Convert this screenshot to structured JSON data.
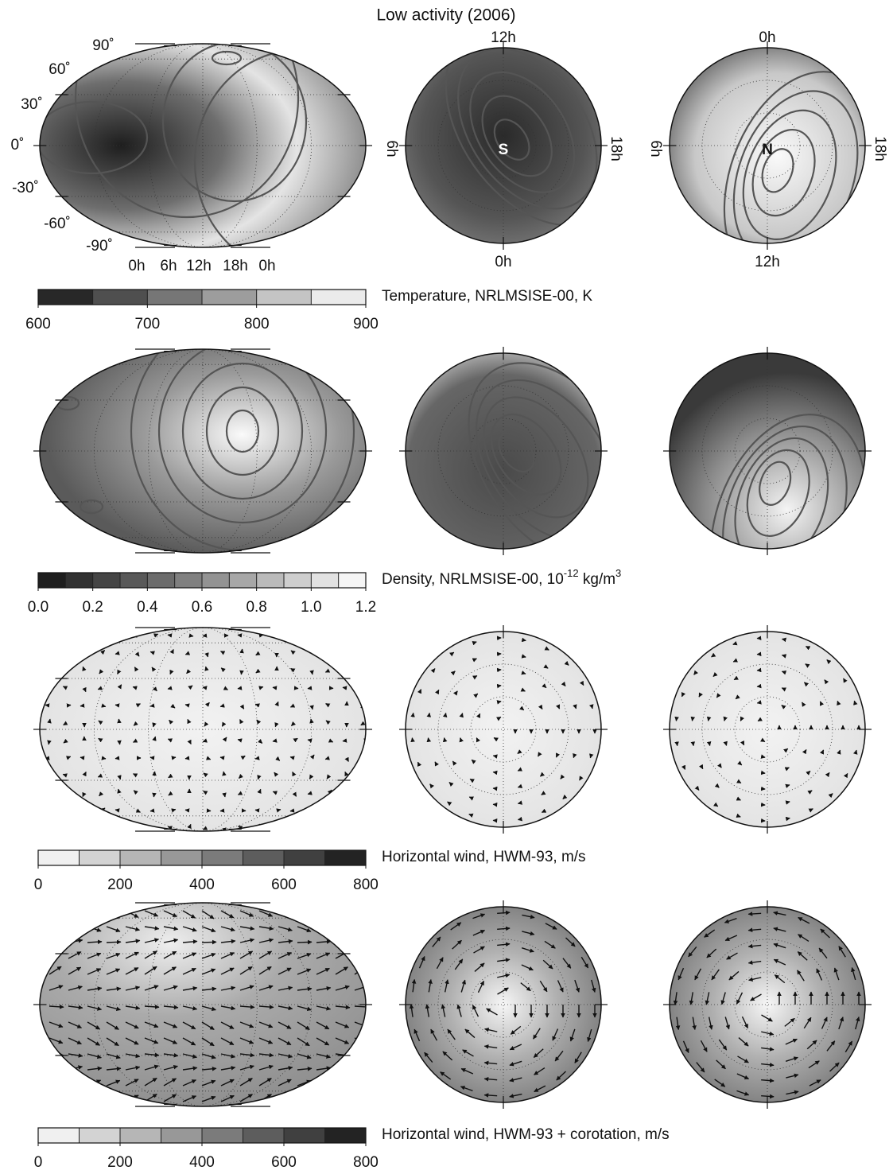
{
  "title": "Low activity (2006)",
  "map_labels": {
    "latitudes": [
      "90˚",
      "60˚",
      "30˚",
      "0˚",
      "-30˚",
      "-60˚",
      "-90˚"
    ],
    "local_times": [
      "0h",
      "6h",
      "12h",
      "18h",
      "0h"
    ],
    "south": {
      "pole": "S",
      "top": "12h",
      "left": "6h",
      "right": "18h",
      "bottom": "0h"
    },
    "north": {
      "pole": "N",
      "top": "0h",
      "left": "6h",
      "right": "18h",
      "bottom": "12h"
    }
  },
  "panels": [
    {
      "colorbar": {
        "label_parts": [
          "Temperature, NRLMSISE-00, K"
        ],
        "lim": [
          600,
          900
        ],
        "ticks": [
          600,
          700,
          800,
          900
        ],
        "colormap": "dark-to-light"
      }
    },
    {
      "colorbar": {
        "label_parts": [
          "Density, NRLMSISE-00, 10",
          "-12",
          " kg/m",
          "3"
        ],
        "lim": [
          0,
          1.2
        ],
        "ticks": [
          {
            "value": 0,
            "label": "0.0"
          },
          0.2,
          0.4,
          0.6,
          0.8,
          {
            "value": 1,
            "label": "1.0"
          },
          1.2
        ],
        "colormap": "dark-to-light"
      }
    },
    {
      "colorbar": {
        "label_parts": [
          "Horizontal wind, HWM-93, m/s"
        ],
        "lim": [
          0,
          800
        ],
        "ticks": [
          0,
          200,
          400,
          600,
          800
        ],
        "colormap": "light-to-dark"
      }
    },
    {
      "colorbar": {
        "label_parts": [
          "Horizontal wind, HWM-93 + corotation, m/s"
        ],
        "lim": [
          0,
          800
        ],
        "ticks": [
          0,
          200,
          400,
          600,
          800
        ],
        "colormap": "light-to-dark"
      }
    }
  ]
}
